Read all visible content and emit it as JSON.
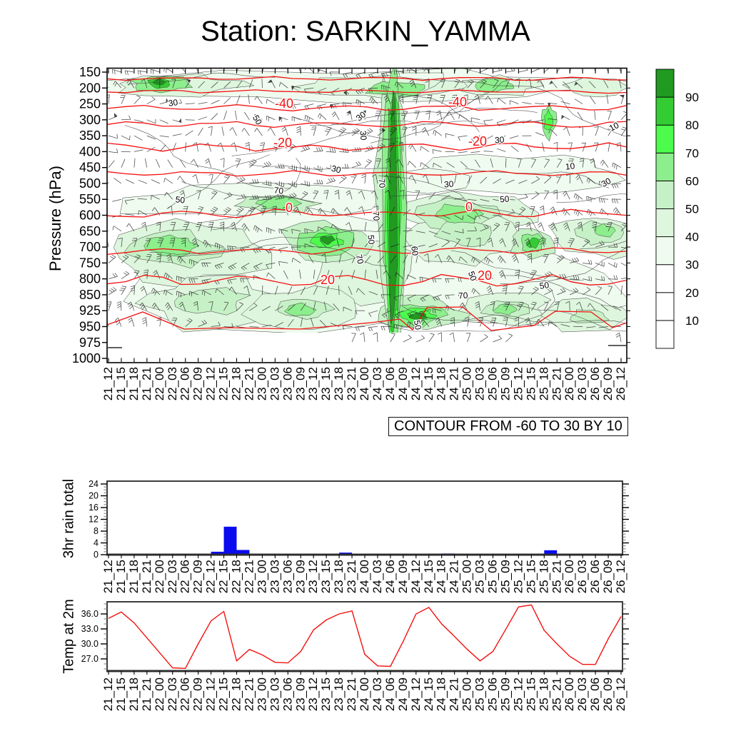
{
  "header": {
    "title": "Station: SARKIN_YAMMA"
  },
  "chart_data": [
    {
      "type": "heatmap",
      "title": "Station: SARKIN_YAMMA",
      "ylabel": "Pressure (hPa)",
      "y_levels": [
        150,
        200,
        250,
        300,
        350,
        400,
        450,
        500,
        550,
        600,
        650,
        700,
        750,
        800,
        850,
        925,
        950,
        975,
        1000
      ],
      "x_categories": [
        "21_12",
        "21_15",
        "21_18",
        "21_21",
        "22_00",
        "22_03",
        "22_06",
        "22_09",
        "22_12",
        "22_15",
        "22_18",
        "22_21",
        "23_00",
        "23_03",
        "23_06",
        "23_09",
        "23_12",
        "23_15",
        "23_18",
        "23_21",
        "24_00",
        "24_03",
        "24_06",
        "24_09",
        "24_12",
        "24_15",
        "24_18",
        "24_21",
        "25_00",
        "25_03",
        "25_06",
        "25_09",
        "25_12",
        "25_15",
        "25_18",
        "25_21",
        "26_00",
        "26_03",
        "26_06",
        "26_09",
        "26_12"
      ],
      "contour_note": "CONTOUR FROM -60 TO 30 BY 10",
      "overlays": [
        "wind-barbs",
        "shaded-contours",
        "red-contours",
        "black-contours"
      ],
      "colorbar": {
        "tick_labels": [
          10,
          20,
          30,
          40,
          50,
          60,
          70,
          80,
          90
        ],
        "colors_bottom_to_top": [
          "#ffffff",
          "#ffffff",
          "#ffffff",
          "#eefbee",
          "#ddf6dd",
          "#c6f1c6",
          "#8cee8c",
          "#4dfb4d",
          "#33cc33",
          "#209a20"
        ]
      },
      "red_contour_labels": [
        "-40",
        "-40",
        "-20",
        "-20",
        "0",
        "0",
        "20",
        "20"
      ],
      "black_contour_labels": [
        "30",
        "50",
        "30",
        "30",
        "10",
        "30",
        "70",
        "30",
        "30",
        "10",
        "50",
        "70",
        "50",
        "30",
        "70",
        "50",
        "60",
        "70",
        "70",
        "50",
        "50",
        "50"
      ]
    },
    {
      "type": "bar",
      "ylabel": "3hr rain total",
      "categories": [
        "21_12",
        "21_15",
        "21_18",
        "21_21",
        "22_00",
        "22_03",
        "22_06",
        "22_09",
        "22_12",
        "22_15",
        "22_18",
        "22_21",
        "23_00",
        "23_03",
        "23_06",
        "23_09",
        "23_12",
        "23_15",
        "23_18",
        "23_21",
        "24_00",
        "24_03",
        "24_06",
        "24_09",
        "24_12",
        "24_15",
        "24_18",
        "24_21",
        "25_00",
        "25_03",
        "25_06",
        "25_09",
        "25_12",
        "25_15",
        "25_18",
        "25_21",
        "26_00",
        "26_03",
        "26_06",
        "26_09",
        "26_12"
      ],
      "values": [
        0,
        0,
        0,
        0,
        0,
        0,
        0,
        0,
        0,
        1.0,
        9.5,
        1.6,
        0,
        0,
        0,
        0,
        0,
        0,
        0,
        0.7,
        0,
        0,
        0,
        0,
        0,
        0,
        0,
        0.4,
        0,
        0,
        0,
        0,
        0,
        0,
        0,
        1.5,
        0,
        0,
        0,
        0,
        0
      ],
      "yticks": [
        0,
        4,
        8,
        12,
        16,
        20,
        24
      ],
      "ylim": [
        0,
        25
      ],
      "bar_color": "#0b0bf0"
    },
    {
      "type": "line",
      "ylabel": "Temp at 2m",
      "categories": [
        "21_12",
        "21_15",
        "21_18",
        "21_21",
        "22_00",
        "22_03",
        "22_06",
        "22_09",
        "22_12",
        "22_15",
        "22_18",
        "22_21",
        "23_00",
        "23_03",
        "23_06",
        "23_09",
        "23_12",
        "23_15",
        "23_18",
        "23_21",
        "24_00",
        "24_03",
        "24_06",
        "24_09",
        "24_12",
        "24_15",
        "24_18",
        "24_21",
        "25_00",
        "25_03",
        "25_06",
        "25_09",
        "25_12",
        "25_15",
        "25_18",
        "25_21",
        "26_00",
        "26_03",
        "26_06",
        "26_09",
        "26_12"
      ],
      "values": [
        35.1,
        36.4,
        34.2,
        31.2,
        28.2,
        25.2,
        25.1,
        30.0,
        34.6,
        36.5,
        26.6,
        28.9,
        27.8,
        26.3,
        26.2,
        28.5,
        32.8,
        34.8,
        36.0,
        36.6,
        27.9,
        25.6,
        25.5,
        30.5,
        36.0,
        37.3,
        34.0,
        31.5,
        28.9,
        26.6,
        28.5,
        32.9,
        37.4,
        37.8,
        32.7,
        30.0,
        27.5,
        25.9,
        25.9,
        31.0,
        35.5
      ],
      "yticks": [
        "27.0",
        "30.0",
        "33.0",
        "36.0"
      ],
      "ylim": [
        24.5,
        38.5
      ],
      "line_color": "#f2120f"
    }
  ]
}
